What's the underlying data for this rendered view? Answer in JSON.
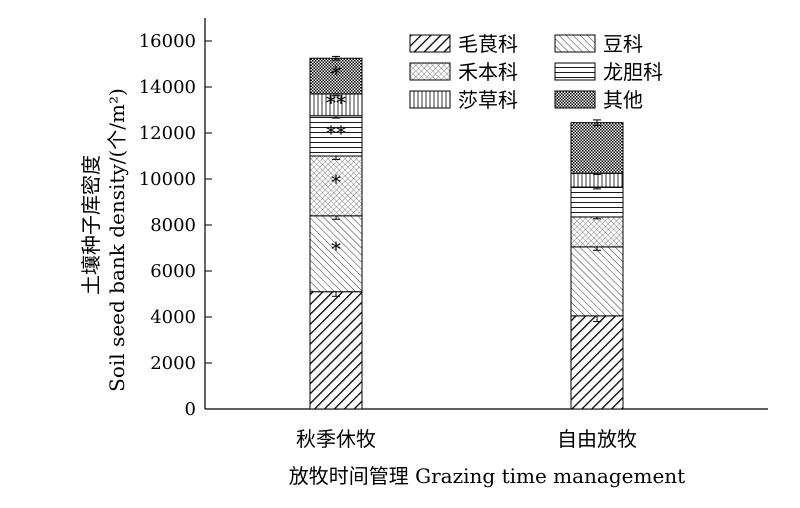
{
  "chart_data": {
    "type": "bar",
    "stacked": true,
    "title": "",
    "xlabel": "放牧时间管理 Grazing time management",
    "ylabel_cn": "土壤种子库密度",
    "ylabel_en": "Soil seed bank density/(个/m²)",
    "ylim": [
      0,
      17000
    ],
    "yticks": [
      0,
      2000,
      4000,
      6000,
      8000,
      10000,
      12000,
      14000,
      16000
    ],
    "categories": [
      "秋季休牧",
      "自由放牧"
    ],
    "legend_placement": "top-right",
    "series": [
      {
        "name": "毛茛科",
        "pattern": "diag-fwd",
        "values": [
          5100,
          4050
        ],
        "errors": [
          200,
          250
        ],
        "sig": [
          "",
          ""
        ]
      },
      {
        "name": "豆科",
        "pattern": "diag-back",
        "values": [
          3300,
          3000
        ],
        "errors": [
          150,
          150
        ],
        "sig": [
          "*",
          ""
        ]
      },
      {
        "name": "禾本科",
        "pattern": "crosshatch",
        "values": [
          2600,
          1300
        ],
        "errors": [
          150,
          80
        ],
        "sig": [
          "*",
          ""
        ]
      },
      {
        "name": "龙胆科",
        "pattern": "horiz",
        "values": [
          1750,
          1300
        ],
        "errors": [
          100,
          80
        ],
        "sig": [
          "**",
          ""
        ]
      },
      {
        "name": "莎草科",
        "pattern": "vert",
        "values": [
          950,
          600
        ],
        "errors": [
          80,
          50
        ],
        "sig": [
          "**",
          ""
        ]
      },
      {
        "name": "其他",
        "pattern": "dots",
        "values": [
          1550,
          2200
        ],
        "errors": [
          80,
          120
        ],
        "sig": [
          "*",
          ""
        ]
      }
    ]
  }
}
